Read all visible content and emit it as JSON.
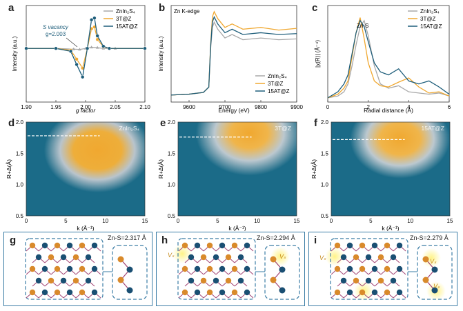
{
  "panels": {
    "a": {
      "label": "a",
      "annotation_line1": "S vacancy",
      "annotation_line2": "g=2.003"
    },
    "b": {
      "label": "b",
      "annotation": "Zn K-edge"
    },
    "c": {
      "label": "c",
      "annotation": "Zn-S"
    },
    "d": {
      "label": "d",
      "tag": "ZnIn₂S₄"
    },
    "e": {
      "label": "e",
      "tag": "3T@Z"
    },
    "f": {
      "label": "f",
      "tag": "15AT@Z"
    },
    "g": {
      "label": "g",
      "bond": "Zn-S=2.317 Å"
    },
    "h": {
      "label": "h",
      "bond": "Zn-S=2.294 Å",
      "vs": "Vₛ"
    },
    "i": {
      "label": "i",
      "bond": "Zn-S=2.279 Å",
      "vs": "Vₛ"
    }
  },
  "chart_data": [
    {
      "id": "a",
      "type": "line",
      "xlabel": "g factor",
      "ylabel": "Intensity (a.u.)",
      "xlim": [
        1.9,
        2.1
      ],
      "xticks": [
        "1.90",
        "1.95",
        "2.00",
        "2.05",
        "2.10"
      ],
      "legend_position": "top-right",
      "series": [
        {
          "name": "ZnIn₂S₄",
          "color": "#a8a8a8",
          "marker": "triangle",
          "x": [
            1.9,
            1.95,
            1.98,
            1.99,
            2.0,
            2.01,
            2.02,
            2.03,
            2.05,
            2.1
          ],
          "y": [
            0,
            0,
            -0.02,
            -0.03,
            0,
            0.03,
            0.02,
            0,
            0,
            0
          ]
        },
        {
          "name": "3T@Z",
          "color": "#f0a830",
          "marker": "circle",
          "x": [
            1.9,
            1.95,
            1.975,
            1.985,
            1.995,
            2.003,
            2.01,
            2.015,
            2.02,
            2.03,
            2.04,
            2.1
          ],
          "y": [
            0,
            0,
            -0.05,
            -0.3,
            -0.55,
            0.0,
            0.55,
            0.6,
            0.25,
            0.05,
            0,
            0
          ]
        },
        {
          "name": "15AT@Z",
          "color": "#1d5d7a",
          "marker": "circle",
          "x": [
            1.9,
            1.95,
            1.975,
            1.985,
            1.995,
            2.003,
            2.01,
            2.015,
            2.02,
            2.03,
            2.04,
            2.1
          ],
          "y": [
            0,
            0,
            -0.08,
            -0.45,
            -0.8,
            0.0,
            0.8,
            0.85,
            0.35,
            0.06,
            0,
            0
          ]
        }
      ]
    },
    {
      "id": "b",
      "type": "line",
      "xlabel": "Energy (eV)",
      "ylabel": "Intensity (a.u.)",
      "xlim": [
        9550,
        9900
      ],
      "xticks": [
        "9600",
        "9700",
        "9800",
        "9900"
      ],
      "legend_position": "bottom-right",
      "series": [
        {
          "name": "ZnIn₂S₄",
          "color": "#a8a8a8",
          "x": [
            9550,
            9600,
            9640,
            9655,
            9660,
            9665,
            9670,
            9680,
            9700,
            9720,
            9750,
            9800,
            9850,
            9900
          ],
          "y": [
            0.03,
            0.04,
            0.06,
            0.12,
            0.55,
            0.8,
            0.86,
            0.78,
            0.68,
            0.72,
            0.66,
            0.68,
            0.66,
            0.67
          ]
        },
        {
          "name": "3T@Z",
          "color": "#f0a830",
          "x": [
            9550,
            9600,
            9640,
            9655,
            9660,
            9665,
            9670,
            9680,
            9700,
            9720,
            9750,
            9800,
            9850,
            9900
          ],
          "y": [
            0.03,
            0.04,
            0.06,
            0.12,
            0.6,
            0.92,
            0.98,
            0.9,
            0.8,
            0.84,
            0.78,
            0.8,
            0.77,
            0.79
          ]
        },
        {
          "name": "15AT@Z",
          "color": "#1d5d7a",
          "x": [
            9550,
            9600,
            9640,
            9655,
            9660,
            9665,
            9670,
            9680,
            9700,
            9720,
            9750,
            9800,
            9850,
            9900
          ],
          "y": [
            0.03,
            0.04,
            0.06,
            0.12,
            0.58,
            0.86,
            0.92,
            0.84,
            0.74,
            0.78,
            0.72,
            0.74,
            0.72,
            0.73
          ]
        }
      ]
    },
    {
      "id": "c",
      "type": "line",
      "xlabel": "Radial distance (Å)",
      "ylabel": "|χ(R)| (Å⁻⁴)",
      "xlim": [
        0,
        6
      ],
      "xticks": [
        "0",
        "2",
        "4",
        "6"
      ],
      "legend_position": "top-right",
      "series": [
        {
          "name": "ZnIn₂S₄",
          "color": "#a8a8a8",
          "x": [
            0,
            0.5,
            0.8,
            1.0,
            1.2,
            1.4,
            1.6,
            1.8,
            2.0,
            2.3,
            2.6,
            3.0,
            3.5,
            4.0,
            4.5,
            5.0,
            5.5,
            6.0
          ],
          "y": [
            0.02,
            0.05,
            0.12,
            0.25,
            0.55,
            0.9,
            1.2,
            1.3,
            1.05,
            0.55,
            0.25,
            0.18,
            0.22,
            0.12,
            0.1,
            0.08,
            0.1,
            0.05
          ]
        },
        {
          "name": "3T@Z",
          "color": "#f0a830",
          "x": [
            0,
            0.5,
            0.8,
            1.0,
            1.2,
            1.4,
            1.6,
            1.8,
            2.0,
            2.3,
            2.6,
            3.0,
            3.5,
            4.0,
            4.5,
            5.0,
            5.5,
            6.0
          ],
          "y": [
            0.02,
            0.08,
            0.18,
            0.3,
            0.7,
            1.1,
            1.35,
            1.0,
            0.6,
            0.3,
            0.22,
            0.2,
            0.28,
            0.35,
            0.2,
            0.1,
            0.12,
            0.05
          ]
        },
        {
          "name": "15AT@Z",
          "color": "#1d5d7a",
          "x": [
            0,
            0.5,
            0.8,
            1.0,
            1.2,
            1.4,
            1.6,
            1.8,
            2.0,
            2.3,
            2.6,
            3.0,
            3.5,
            4.0,
            4.5,
            5.0,
            5.5,
            6.0
          ],
          "y": [
            0.02,
            0.12,
            0.25,
            0.4,
            0.75,
            1.1,
            1.3,
            1.2,
            0.95,
            0.6,
            0.45,
            0.4,
            0.5,
            0.3,
            0.25,
            0.3,
            0.2,
            0.08
          ]
        }
      ]
    },
    {
      "id": "d",
      "type": "heatmap",
      "xlabel": "k (Å⁻¹)",
      "ylabel": "R+Δ(Å)",
      "xlim": [
        0,
        15
      ],
      "ylim": [
        0.5,
        2.0
      ],
      "xticks": [
        "0",
        "5",
        "10",
        "15"
      ],
      "yticks": [
        "0.5",
        "1.0",
        "1.5",
        "2.0"
      ],
      "hot_spot": {
        "k": 9,
        "r": 1.6
      },
      "dashed_level": 1.78
    },
    {
      "id": "e",
      "type": "heatmap",
      "xlabel": "k (Å⁻¹)",
      "ylabel": "R+Δ(Å)",
      "xlim": [
        0,
        15
      ],
      "ylim": [
        0.5,
        2.0
      ],
      "xticks": [
        "0",
        "5",
        "10",
        "15"
      ],
      "yticks": [
        "0.5",
        "1.0",
        "1.5",
        "2.0"
      ],
      "hot_spot": {
        "k": 9.5,
        "r": 1.8
      },
      "dashed_level": 1.76
    },
    {
      "id": "f",
      "type": "heatmap",
      "xlabel": "k (Å⁻¹)",
      "ylabel": "R+Δ(Å)",
      "xlim": [
        0,
        15
      ],
      "ylim": [
        0.5,
        2.0
      ],
      "xticks": [
        "0",
        "5",
        "10",
        "15"
      ],
      "yticks": [
        "0.5",
        "1.0",
        "1.5",
        "2.0"
      ],
      "hot_spot": {
        "k": 9,
        "r": 1.75
      },
      "dashed_level": 1.72
    }
  ],
  "colors": {
    "orange": "#f0a830",
    "navy": "#1d5d7a",
    "gray": "#a8a8a8",
    "teal": "#1f6d8c",
    "frame": "#3a7ca5",
    "bond": "#a44a78",
    "s_atom": "#d98a2b",
    "zn_atom": "#1a4f73"
  }
}
